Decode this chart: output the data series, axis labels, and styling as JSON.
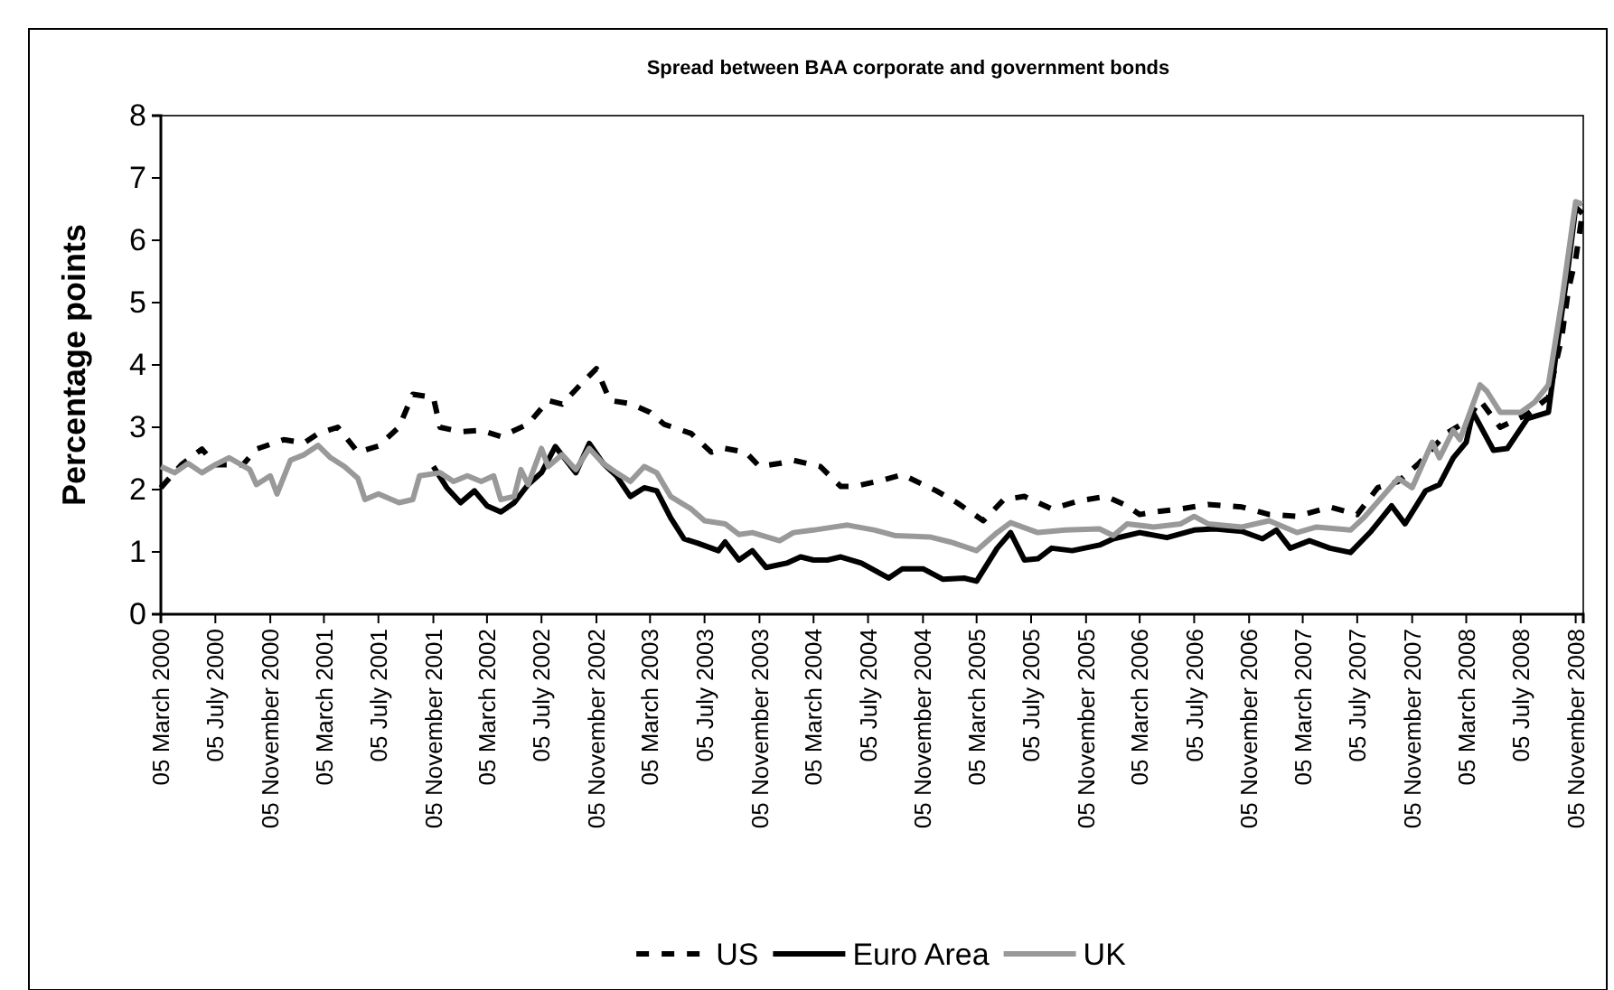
{
  "chart_data": {
    "type": "line",
    "title": "Spread between BAA corporate and government bonds",
    "ylabel": "Percentage points",
    "legend": "bottom",
    "xlim": [
      "2000-03-05",
      "2008-11-22"
    ],
    "ylim": [
      0,
      8
    ],
    "yticks": [
      0,
      1,
      2,
      3,
      4,
      5,
      6,
      7,
      8
    ],
    "xticks": [
      {
        "value": "2000-03-05",
        "label": "05 March 2000"
      },
      {
        "value": "2000-07-05",
        "label": "05 July 2000"
      },
      {
        "value": "2000-11-05",
        "label": "05 November 2000"
      },
      {
        "value": "2001-03-05",
        "label": "05 March 2001"
      },
      {
        "value": "2001-07-05",
        "label": "05 July 2001"
      },
      {
        "value": "2001-11-05",
        "label": "05 November 2001"
      },
      {
        "value": "2002-03-05",
        "label": "05 March 2002"
      },
      {
        "value": "2002-07-05",
        "label": "05 July 2002"
      },
      {
        "value": "2002-11-05",
        "label": "05 November 2002"
      },
      {
        "value": "2003-03-05",
        "label": "05 March 2003"
      },
      {
        "value": "2003-07-05",
        "label": "05 July 2003"
      },
      {
        "value": "2003-11-05",
        "label": "05 November 2003"
      },
      {
        "value": "2004-03-05",
        "label": "05 March 2004"
      },
      {
        "value": "2004-07-05",
        "label": "05 July 2004"
      },
      {
        "value": "2004-11-05",
        "label": "05 November 2004"
      },
      {
        "value": "2005-03-05",
        "label": "05 March 2005"
      },
      {
        "value": "2005-07-05",
        "label": "05 July 2005"
      },
      {
        "value": "2005-11-05",
        "label": "05 November 2005"
      },
      {
        "value": "2006-03-05",
        "label": "05 March 2006"
      },
      {
        "value": "2006-07-05",
        "label": "05 July 2006"
      },
      {
        "value": "2006-11-05",
        "label": "05 November 2006"
      },
      {
        "value": "2007-03-05",
        "label": "05 March 2007"
      },
      {
        "value": "2007-07-05",
        "label": "05 July 2007"
      },
      {
        "value": "2007-11-05",
        "label": "05 November 2007"
      },
      {
        "value": "2008-03-05",
        "label": "05 March 2008"
      },
      {
        "value": "2008-07-05",
        "label": "05 July 2008"
      },
      {
        "value": "2008-11-05",
        "label": "05 November 2008"
      }
    ],
    "series": [
      {
        "name": "US",
        "color": "#000000",
        "line_style": "dashed",
        "x": [
          "2000-03-05",
          "2000-04-20",
          "2000-06-05",
          "2000-07-05",
          "2000-09-05",
          "2000-10-05",
          "2000-12-05",
          "2001-01-20",
          "2001-02-20",
          "2001-04-05",
          "2001-05-20",
          "2001-07-05",
          "2001-08-20",
          "2001-09-20",
          "2001-11-05",
          "2001-11-20",
          "2002-01-05",
          "2002-02-20",
          "2002-04-05",
          "2002-06-05",
          "2002-07-20",
          "2002-08-20",
          "2002-10-05",
          "2002-11-05",
          "2002-12-05",
          "2003-01-20",
          "2003-03-05",
          "2003-04-05",
          "2003-06-05",
          "2003-07-20",
          "2003-08-20",
          "2003-10-05",
          "2003-11-05",
          "2003-12-20",
          "2004-01-20",
          "2004-03-20",
          "2004-05-05",
          "2004-06-05",
          "2004-08-05",
          "2004-09-20",
          "2004-11-05",
          "2004-12-05",
          "2005-01-20",
          "2005-03-20",
          "2005-05-05",
          "2005-06-20",
          "2005-08-20",
          "2005-10-20",
          "2005-12-20",
          "2006-02-05",
          "2006-03-05",
          "2006-04-05",
          "2006-06-05",
          "2006-08-05",
          "2006-10-20",
          "2006-12-20",
          "2007-02-20",
          "2007-05-05",
          "2007-07-05",
          "2007-08-20",
          "2007-10-05",
          "2007-11-20",
          "2008-01-20",
          "2008-03-05",
          "2008-04-05",
          "2008-05-20",
          "2008-07-20",
          "2008-09-05",
          "2008-10-05",
          "2008-10-20",
          "2008-11-05",
          "2008-11-20"
        ],
        "values": [
          2.03,
          2.4,
          2.65,
          2.4,
          2.4,
          2.65,
          2.8,
          2.75,
          2.9,
          3.0,
          2.6,
          2.7,
          3.0,
          3.53,
          3.48,
          3.0,
          2.93,
          2.95,
          2.85,
          3.05,
          3.43,
          3.37,
          3.72,
          3.94,
          3.43,
          3.38,
          3.24,
          3.05,
          2.9,
          2.6,
          2.66,
          2.6,
          2.37,
          2.42,
          2.47,
          2.37,
          2.05,
          2.05,
          2.15,
          2.24,
          2.08,
          1.98,
          1.79,
          1.5,
          1.84,
          1.89,
          1.69,
          1.82,
          1.89,
          1.74,
          1.6,
          1.64,
          1.69,
          1.76,
          1.72,
          1.6,
          1.57,
          1.72,
          1.6,
          2.03,
          2.13,
          2.42,
          2.9,
          3.09,
          3.43,
          3.0,
          3.21,
          3.48,
          4.45,
          5.22,
          5.7,
          6.43
        ]
      },
      {
        "name": "Euro Area",
        "color": "#000000",
        "line_style": "solid",
        "x": [
          "2001-11-05",
          "2001-12-05",
          "2002-01-05",
          "2002-02-05",
          "2002-03-05",
          "2002-04-05",
          "2002-05-05",
          "2002-06-05",
          "2002-07-05",
          "2002-08-05",
          "2002-09-20",
          "2002-10-20",
          "2002-11-20",
          "2002-12-20",
          "2003-01-20",
          "2003-02-20",
          "2003-03-20",
          "2003-04-20",
          "2003-05-20",
          "2003-06-20",
          "2003-08-05",
          "2003-08-20",
          "2003-09-20",
          "2003-10-20",
          "2003-11-20",
          "2004-01-05",
          "2004-02-05",
          "2004-03-05",
          "2004-04-05",
          "2004-05-05",
          "2004-06-20",
          "2004-08-20",
          "2004-09-20",
          "2004-11-05",
          "2004-12-20",
          "2005-02-05",
          "2005-03-05",
          "2005-04-20",
          "2005-05-20",
          "2005-06-20",
          "2005-07-20",
          "2005-08-20",
          "2005-10-05",
          "2005-12-05",
          "2006-01-05",
          "2006-03-05",
          "2006-05-05",
          "2006-07-05",
          "2006-08-20",
          "2006-10-20",
          "2006-12-05",
          "2007-01-05",
          "2007-02-05",
          "2007-03-20",
          "2007-05-05",
          "2007-06-20",
          "2007-08-05",
          "2007-09-20",
          "2007-10-20",
          "2007-12-05",
          "2008-01-05",
          "2008-02-05",
          "2008-03-05",
          "2008-03-20",
          "2008-05-05",
          "2008-06-05",
          "2008-07-20",
          "2008-09-05",
          "2008-09-20",
          "2008-10-20",
          "2008-11-05",
          "2008-11-20"
        ],
        "values": [
          2.37,
          2.03,
          1.79,
          1.98,
          1.74,
          1.64,
          1.79,
          2.08,
          2.27,
          2.69,
          2.27,
          2.74,
          2.42,
          2.22,
          1.89,
          2.03,
          1.98,
          1.55,
          1.21,
          1.14,
          1.02,
          1.16,
          0.87,
          1.02,
          0.75,
          0.82,
          0.92,
          0.87,
          0.87,
          0.92,
          0.82,
          0.58,
          0.73,
          0.73,
          0.56,
          0.58,
          0.53,
          1.06,
          1.31,
          0.87,
          0.89,
          1.06,
          1.02,
          1.11,
          1.21,
          1.31,
          1.23,
          1.35,
          1.37,
          1.33,
          1.21,
          1.35,
          1.06,
          1.18,
          1.06,
          0.99,
          1.33,
          1.74,
          1.45,
          1.98,
          2.08,
          2.51,
          2.76,
          3.24,
          2.63,
          2.66,
          3.14,
          3.24,
          4.06,
          5.61,
          6.53,
          6.43
        ]
      },
      {
        "name": "UK",
        "color": "#999999",
        "line_style": "solid",
        "x": [
          "2000-03-05",
          "2000-04-05",
          "2000-05-05",
          "2000-06-05",
          "2000-07-05",
          "2000-08-05",
          "2000-09-20",
          "2000-10-05",
          "2000-11-05",
          "2000-11-20",
          "2000-12-20",
          "2001-01-20",
          "2001-02-20",
          "2001-03-20",
          "2001-04-20",
          "2001-05-20",
          "2001-06-05",
          "2001-07-05",
          "2001-08-20",
          "2001-09-20",
          "2001-10-05",
          "2001-11-20",
          "2001-12-20",
          "2002-01-20",
          "2002-02-20",
          "2002-03-20",
          "2002-04-05",
          "2002-05-05",
          "2002-05-20",
          "2002-06-05",
          "2002-07-05",
          "2002-07-20",
          "2002-08-20",
          "2002-09-20",
          "2002-10-20",
          "2002-11-20",
          "2002-12-20",
          "2003-01-20",
          "2003-02-20",
          "2003-03-20",
          "2003-04-20",
          "2003-06-05",
          "2003-07-05",
          "2003-08-20",
          "2003-09-20",
          "2003-10-20",
          "2003-12-20",
          "2004-01-20",
          "2004-03-05",
          "2004-04-20",
          "2004-05-20",
          "2004-07-20",
          "2004-09-05",
          "2004-11-20",
          "2005-01-05",
          "2005-03-05",
          "2005-04-20",
          "2005-05-20",
          "2005-07-20",
          "2005-09-20",
          "2005-12-05",
          "2006-01-05",
          "2006-02-05",
          "2006-04-05",
          "2006-06-05",
          "2006-07-05",
          "2006-08-05",
          "2006-10-20",
          "2006-12-20",
          "2007-02-20",
          "2007-04-05",
          "2007-06-20",
          "2007-07-20",
          "2007-10-05",
          "2007-11-05",
          "2007-12-20",
          "2008-01-05",
          "2008-02-05",
          "2008-02-20",
          "2008-04-05",
          "2008-04-20",
          "2008-05-20",
          "2008-07-05",
          "2008-08-05",
          "2008-09-05",
          "2008-10-05",
          "2008-11-05",
          "2008-11-20"
        ],
        "values": [
          2.37,
          2.27,
          2.42,
          2.27,
          2.4,
          2.51,
          2.32,
          2.08,
          2.22,
          1.93,
          2.47,
          2.56,
          2.71,
          2.51,
          2.37,
          2.18,
          1.84,
          1.93,
          1.79,
          1.84,
          2.22,
          2.27,
          2.13,
          2.22,
          2.13,
          2.22,
          1.84,
          1.89,
          2.32,
          2.08,
          2.66,
          2.37,
          2.56,
          2.32,
          2.66,
          2.42,
          2.27,
          2.13,
          2.37,
          2.27,
          1.89,
          1.69,
          1.5,
          1.45,
          1.28,
          1.31,
          1.18,
          1.31,
          1.35,
          1.4,
          1.43,
          1.35,
          1.26,
          1.24,
          1.16,
          1.02,
          1.31,
          1.47,
          1.31,
          1.35,
          1.37,
          1.26,
          1.45,
          1.4,
          1.45,
          1.57,
          1.45,
          1.4,
          1.5,
          1.31,
          1.4,
          1.35,
          1.55,
          2.18,
          2.03,
          2.76,
          2.51,
          2.95,
          2.8,
          3.68,
          3.58,
          3.24,
          3.24,
          3.4,
          3.68,
          5.03,
          6.62,
          6.58
        ]
      }
    ]
  }
}
